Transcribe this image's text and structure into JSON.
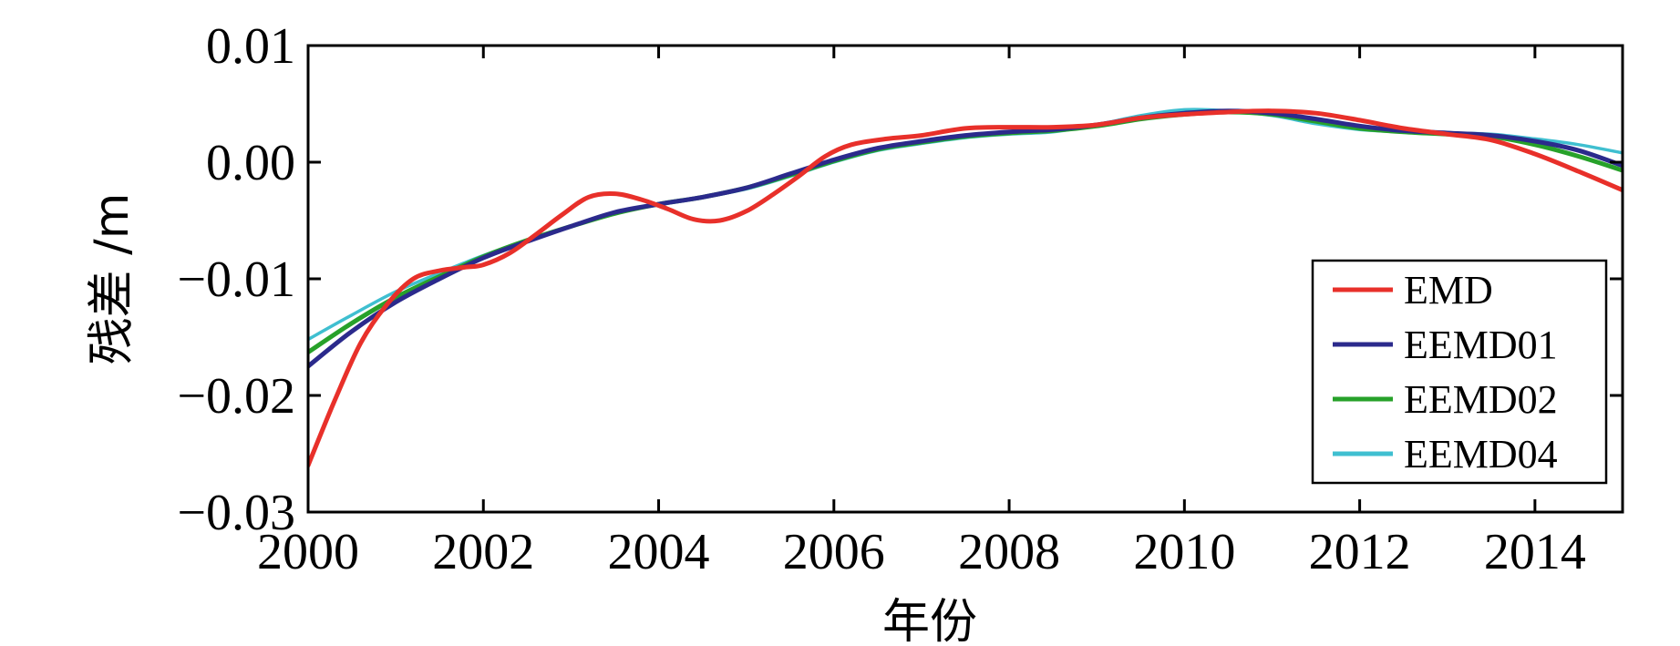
{
  "chart_data": {
    "type": "line",
    "title": "",
    "xlabel": "年份",
    "ylabel": "残差 /m",
    "xlim": [
      2000,
      2015
    ],
    "ylim": [
      -0.03,
      0.01
    ],
    "x_ticks": [
      2000,
      2002,
      2004,
      2006,
      2008,
      2010,
      2012,
      2014
    ],
    "x_tick_labels": [
      "2000",
      "2002",
      "2004",
      "2006",
      "2008",
      "2010",
      "2012",
      "2014"
    ],
    "y_ticks": [
      0.01,
      0.0,
      -0.01,
      -0.02,
      -0.03
    ],
    "y_tick_labels": [
      "0.01",
      "0.00",
      "−0.01",
      "−0.02",
      "−0.03"
    ],
    "grid": false,
    "legend_position": "lower-right",
    "series": [
      {
        "name": "EMD",
        "color": "#e8302a",
        "x": [
          2000,
          2000.3,
          2000.6,
          2000.9,
          2001.2,
          2001.5,
          2001.8,
          2002.0,
          2002.3,
          2002.6,
          2002.9,
          2003.2,
          2003.5,
          2003.8,
          2004.1,
          2004.4,
          2004.7,
          2005.0,
          2005.3,
          2005.6,
          2005.9,
          2006.2,
          2006.6,
          2007.0,
          2007.5,
          2008.0,
          2008.5,
          2009.0,
          2009.5,
          2010.0,
          2010.5,
          2011.0,
          2011.5,
          2012.0,
          2012.5,
          2013.0,
          2013.5,
          2014.0,
          2014.5,
          2015.0
        ],
        "y": [
          -0.026,
          -0.0205,
          -0.0155,
          -0.0122,
          -0.01,
          -0.0093,
          -0.009,
          -0.0088,
          -0.0078,
          -0.0062,
          -0.0045,
          -0.003,
          -0.0027,
          -0.0032,
          -0.004,
          -0.0049,
          -0.005,
          -0.0042,
          -0.0028,
          -0.0012,
          0.0005,
          0.0015,
          0.002,
          0.0023,
          0.0029,
          0.003,
          0.003,
          0.0032,
          0.0038,
          0.0041,
          0.0043,
          0.0044,
          0.0042,
          0.0036,
          0.0029,
          0.0024,
          0.0019,
          0.0007,
          -0.0008,
          -0.0024
        ]
      },
      {
        "name": "EEMD01",
        "color": "#2b2a8c",
        "x": [
          2000,
          2000.5,
          2001.0,
          2001.5,
          2002.0,
          2002.5,
          2003.0,
          2003.5,
          2004.0,
          2004.5,
          2005.0,
          2005.5,
          2006.0,
          2006.5,
          2007.0,
          2007.5,
          2008.0,
          2008.5,
          2009.0,
          2009.5,
          2010.0,
          2010.5,
          2011.0,
          2011.5,
          2012.0,
          2012.5,
          2013.0,
          2013.5,
          2014.0,
          2014.5,
          2015.0
        ],
        "y": [
          -0.0175,
          -0.0145,
          -0.012,
          -0.01,
          -0.0082,
          -0.0068,
          -0.0055,
          -0.0043,
          -0.0036,
          -0.003,
          -0.0022,
          -0.001,
          0.0002,
          0.0012,
          0.0018,
          0.0023,
          0.0026,
          0.0028,
          0.0032,
          0.0038,
          0.0042,
          0.0044,
          0.0042,
          0.0037,
          0.0031,
          0.0027,
          0.0025,
          0.0023,
          0.0018,
          0.001,
          -0.0003
        ]
      },
      {
        "name": "EEMD02",
        "color": "#27a12a",
        "x": [
          2000,
          2000.5,
          2001.0,
          2001.5,
          2002.0,
          2002.5,
          2003.0,
          2003.5,
          2004.0,
          2004.5,
          2005.0,
          2005.5,
          2006.0,
          2006.5,
          2007.0,
          2007.5,
          2008.0,
          2008.5,
          2009.0,
          2009.5,
          2010.0,
          2010.5,
          2011.0,
          2011.5,
          2012.0,
          2012.5,
          2013.0,
          2013.5,
          2014.0,
          2014.5,
          2015.0
        ],
        "y": [
          -0.0163,
          -0.0138,
          -0.0116,
          -0.0098,
          -0.0081,
          -0.0067,
          -0.0055,
          -0.0044,
          -0.0036,
          -0.003,
          -0.0022,
          -0.0011,
          0.0001,
          0.0011,
          0.0017,
          0.0022,
          0.0025,
          0.0027,
          0.0031,
          0.0037,
          0.0041,
          0.0043,
          0.0041,
          0.0035,
          0.0029,
          0.0026,
          0.0024,
          0.0022,
          0.0015,
          0.0005,
          -0.0007
        ]
      },
      {
        "name": "EEMD04",
        "color": "#3fbfd0",
        "x": [
          2000,
          2000.5,
          2001.0,
          2001.5,
          2002.0,
          2002.5,
          2003.0,
          2003.5,
          2004.0,
          2004.5,
          2005.0,
          2005.5,
          2006.0,
          2006.5,
          2007.0,
          2007.5,
          2008.0,
          2008.5,
          2009.0,
          2009.5,
          2010.0,
          2010.5,
          2011.0,
          2011.5,
          2012.0,
          2012.5,
          2013.0,
          2013.5,
          2014.0,
          2014.5,
          2015.0
        ],
        "y": [
          -0.0152,
          -0.0131,
          -0.0111,
          -0.0095,
          -0.008,
          -0.0067,
          -0.0055,
          -0.0044,
          -0.0036,
          -0.003,
          -0.0023,
          -0.0012,
          0.0,
          0.001,
          0.0016,
          0.0021,
          0.0024,
          0.0026,
          0.0032,
          0.004,
          0.0045,
          0.0044,
          0.004,
          0.0033,
          0.0028,
          0.0026,
          0.0025,
          0.0024,
          0.002,
          0.0015,
          0.0008
        ]
      }
    ]
  }
}
